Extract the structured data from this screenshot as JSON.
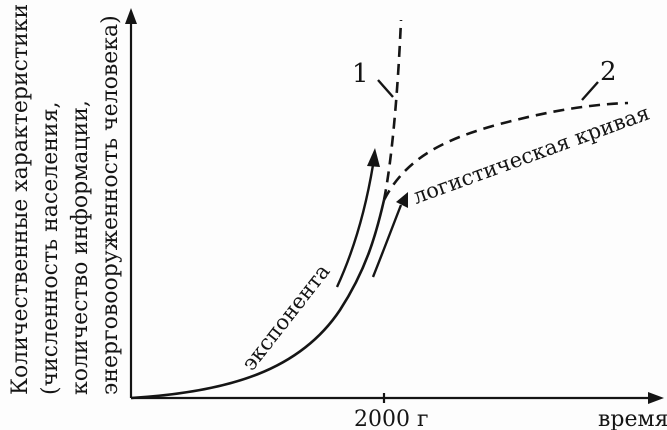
{
  "diagram": {
    "y_axis_label": [
      "Количественные характеристики",
      "(численность населения,",
      "количество информации,",
      "энерговооруженность человека)"
    ],
    "x_axis_label": "время",
    "x_tick_label": "2000 г",
    "curve_1_label": "1",
    "curve_2_label": "2",
    "exponent_label": "экспонента",
    "logistic_label": "логистическая кривая"
  }
}
